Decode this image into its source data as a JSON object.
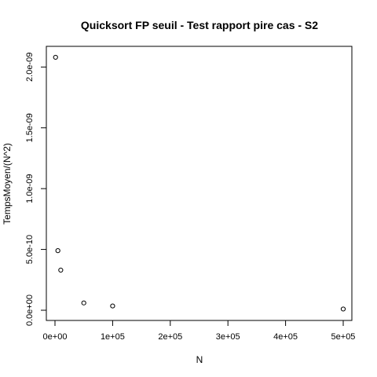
{
  "chart_data": {
    "type": "scatter",
    "title": "Quicksort FP seuil - Test rapport pire cas - S2",
    "xlabel": "N",
    "ylabel": "TempsMoyen/(N^2)",
    "xlim": [
      -15000,
      515000
    ],
    "ylim": [
      -8.4e-11,
      2.17e-09
    ],
    "x_ticks": [
      {
        "value": 0,
        "label": "0e+00"
      },
      {
        "value": 100000,
        "label": "1e+05"
      },
      {
        "value": 200000,
        "label": "2e+05"
      },
      {
        "value": 300000,
        "label": "3e+05"
      },
      {
        "value": 400000,
        "label": "4e+05"
      },
      {
        "value": 500000,
        "label": "5e+05"
      }
    ],
    "y_ticks": [
      {
        "value": 0,
        "label": "0.0e+00"
      },
      {
        "value": 5e-10,
        "label": "5.0e-10"
      },
      {
        "value": 1e-09,
        "label": "1.0e-09"
      },
      {
        "value": 1.5e-09,
        "label": "1.5e-09"
      },
      {
        "value": 2e-09,
        "label": "2.0e-09"
      }
    ],
    "points": [
      {
        "x": 1000,
        "y": 2.08e-09
      },
      {
        "x": 5000,
        "y": 4.9e-10
      },
      {
        "x": 10000,
        "y": 3.3e-10
      },
      {
        "x": 50000,
        "y": 6e-11
      },
      {
        "x": 100000,
        "y": 3.5e-11
      },
      {
        "x": 500000,
        "y": 1e-11
      }
    ],
    "grid": false,
    "point_style": "open-circle"
  }
}
